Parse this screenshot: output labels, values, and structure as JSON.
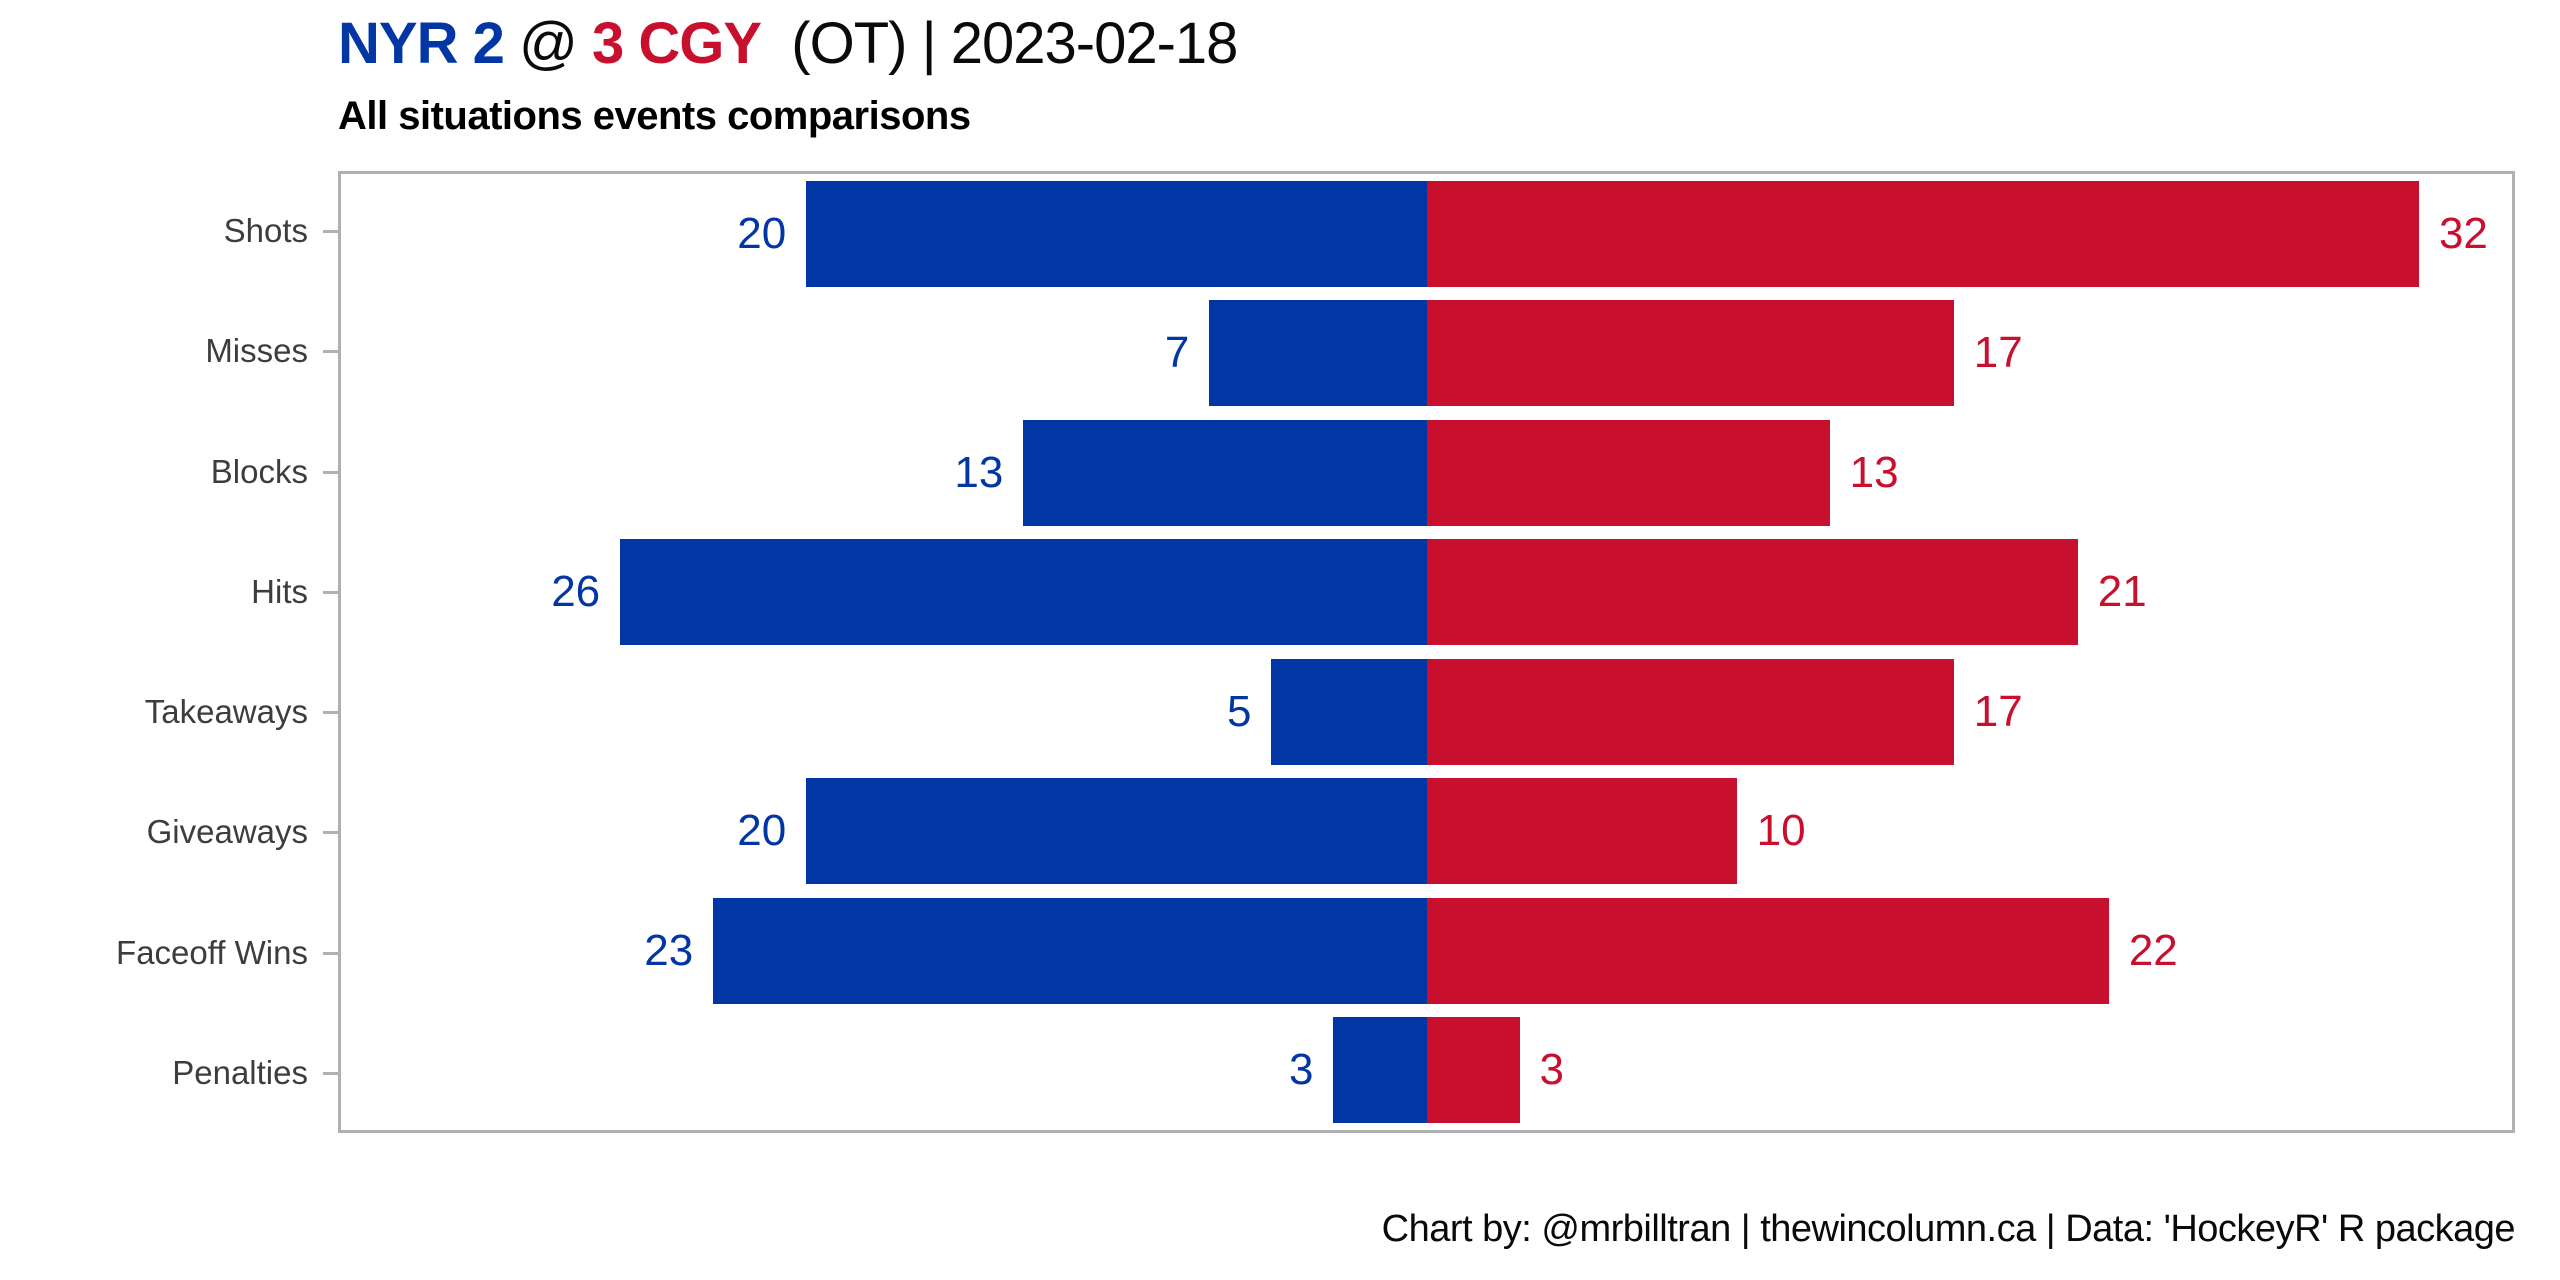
{
  "header": {
    "away_team_score": "NYR 2",
    "at_symbol": "@",
    "home_score_team": "3 CGY",
    "title_suffix": "(OT) | 2023-02-18",
    "subtitle": "All situations events comparisons"
  },
  "footer": {
    "caption": "Chart by: @mrbilltran | thewincolumn.ca | Data: 'HockeyR' R package"
  },
  "colors": {
    "away_blue": "#0236a4",
    "home_red": "#c8102e",
    "frame_gray": "#b0b0b0",
    "axis_label_gray": "#3d3d3d"
  },
  "chart_data": {
    "type": "bar",
    "subtype": "diverging-horizontal",
    "title": "NYR 2 @ 3 CGY (OT) | 2023-02-18",
    "subtitle": "All situations events comparisons",
    "categories": [
      "Shots",
      "Misses",
      "Blocks",
      "Hits",
      "Takeaways",
      "Giveaways",
      "Faceoff Wins",
      "Penalties"
    ],
    "series": [
      {
        "name": "NYR",
        "side": "left",
        "color": "#0236a4",
        "values": [
          20,
          7,
          13,
          26,
          5,
          20,
          23,
          3
        ]
      },
      {
        "name": "CGY",
        "side": "right",
        "color": "#c8102e",
        "values": [
          32,
          17,
          13,
          21,
          17,
          10,
          22,
          3
        ]
      }
    ],
    "axis_max_per_side": 35,
    "grid": false,
    "legend": "none",
    "value_labels": "outside bar ends, colored per series",
    "xlabel": "",
    "ylabel": ""
  }
}
